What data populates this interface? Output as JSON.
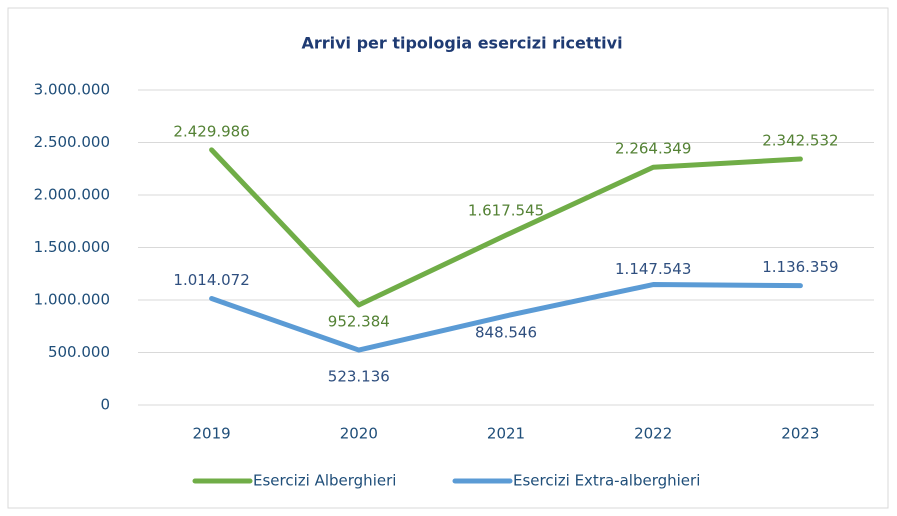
{
  "chart_data": {
    "type": "line",
    "title": "Arrivi per tipologia esercizi ricettivi",
    "categories": [
      "2019",
      "2020",
      "2021",
      "2022",
      "2023"
    ],
    "series": [
      {
        "name": "Esercizi Alberghieri",
        "color": "#70ad47",
        "label_color": "#548235",
        "values": [
          2429986,
          952384,
          1617545,
          2264349,
          2342532
        ],
        "value_labels": [
          "2.429.986",
          "952.384",
          "1.617.545",
          "2.264.349",
          "2.342.532"
        ]
      },
      {
        "name": "Esercizi Extra-alberghieri",
        "color": "#5b9bd5",
        "label_color": "#2f4f7f",
        "values": [
          1014072,
          523136,
          848546,
          1147543,
          1136359
        ],
        "value_labels": [
          "1.014.072",
          "523.136",
          "848.546",
          "1.147.543",
          "1.136.359"
        ]
      }
    ],
    "ylim": [
      0,
      3000000
    ],
    "yticks": [
      0,
      {
        "value": 500000,
        "label": "500.000"
      },
      {
        "value": 1000000,
        "label": "1.000.000"
      },
      {
        "value": 1500000,
        "label": "1.500.000"
      },
      {
        "value": 2000000,
        "label": "2.000.000"
      },
      {
        "value": 2500000,
        "label": "2.500.000"
      },
      {
        "value": 3000000,
        "label": "3.000.000"
      }
    ],
    "grid": true,
    "legend": "bottom"
  }
}
